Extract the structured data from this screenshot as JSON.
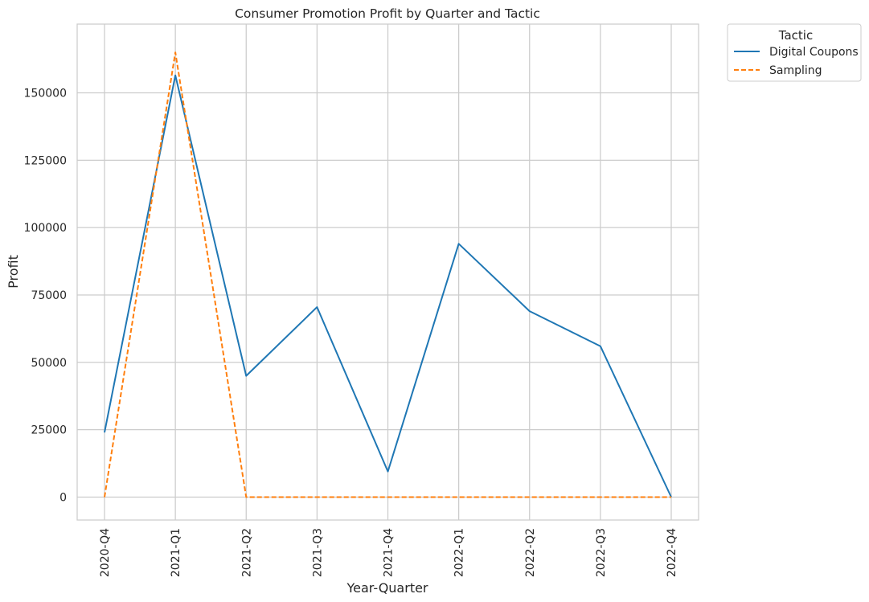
{
  "chart_data": {
    "type": "line",
    "title": "Consumer Promotion Profit by Quarter and Tactic",
    "xlabel": "Year-Quarter",
    "ylabel": "Profit",
    "categories": [
      "2020-Q4",
      "2021-Q1",
      "2021-Q2",
      "2021-Q3",
      "2021-Q4",
      "2022-Q1",
      "2022-Q2",
      "2022-Q3",
      "2022-Q4"
    ],
    "ylim": [
      -8500,
      175500
    ],
    "yticks": [
      0,
      25000,
      50000,
      75000,
      100000,
      125000,
      150000
    ],
    "grid": true,
    "legend": {
      "title": "Tactic",
      "placement": "outside-top-right"
    },
    "series": [
      {
        "name": "Digital Coupons",
        "color": "#1f77b4",
        "style": "solid",
        "values": [
          24000,
          156500,
          45000,
          70500,
          9500,
          94000,
          69000,
          56000,
          0
        ]
      },
      {
        "name": "Sampling",
        "color": "#ff7f0e",
        "style": "dashed",
        "values": [
          0,
          165000,
          0,
          0,
          0,
          0,
          0,
          0,
          0
        ]
      }
    ]
  }
}
